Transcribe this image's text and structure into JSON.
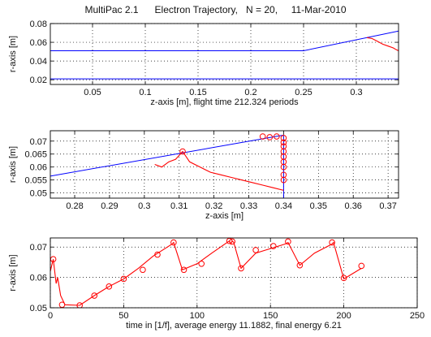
{
  "figure_title": "MultiPac 2.1      Electron Trajectory,   N = 20,     11-Mar-2010",
  "chart_data": [
    {
      "type": "line",
      "xlabel": "z-axis [m],  flight time 212.324 periods",
      "ylabel": "r-axis [m]",
      "xlim": [
        0.01,
        0.34
      ],
      "ylim": [
        0.015,
        0.08
      ],
      "xticks": [
        0.05,
        0.1,
        0.15,
        0.2,
        0.25,
        0.3
      ],
      "xtick_labels": [
        "0.05",
        "0.1",
        "0.15",
        "0.2",
        "0.25",
        "0.3"
      ],
      "yticks": [
        0.02,
        0.04,
        0.06,
        0.08
      ],
      "ytick_labels": [
        "0.02",
        "0.04",
        "0.06",
        "0.08"
      ],
      "grid": true,
      "series": [
        {
          "role": "geometry",
          "color": "#0000ff",
          "x": [
            0.01,
            0.25,
            0.34
          ],
          "y": [
            0.051,
            0.051,
            0.072
          ]
        },
        {
          "role": "geometry",
          "color": "#0000ff",
          "x": [
            0.01,
            0.34
          ],
          "y": [
            0.021,
            0.021
          ]
        },
        {
          "role": "trajectory",
          "color": "#ff0000",
          "x": [
            0.31,
            0.315,
            0.32,
            0.325,
            0.33,
            0.335,
            0.338,
            0.34
          ],
          "y": [
            0.065,
            0.064,
            0.061,
            0.058,
            0.056,
            0.054,
            0.052,
            0.051
          ]
        }
      ]
    },
    {
      "type": "line",
      "xlabel": "z-axis [m]",
      "ylabel": "r-axis [m]",
      "xlim": [
        0.273,
        0.373
      ],
      "ylim": [
        0.048,
        0.074
      ],
      "xticks": [
        0.28,
        0.29,
        0.3,
        0.31,
        0.32,
        0.33,
        0.34,
        0.35,
        0.36,
        0.37
      ],
      "xtick_labels": [
        "0.28",
        "0.29",
        "0.3",
        "0.31",
        "0.32",
        "0.33",
        "0.34",
        "0.35",
        "0.36",
        "0.37"
      ],
      "yticks": [
        0.05,
        0.055,
        0.06,
        0.065,
        0.07
      ],
      "ytick_labels": [
        "0.05",
        "0.055",
        "0.06",
        "0.065",
        "0.07"
      ],
      "grid": true,
      "series": [
        {
          "role": "geometry",
          "color": "#0000ff",
          "x": [
            0.273,
            0.34
          ],
          "y": [
            0.0565,
            0.0723
          ]
        },
        {
          "role": "geometry",
          "color": "#0000ff",
          "x": [
            0.34,
            0.34
          ],
          "y": [
            0.048,
            0.0723
          ]
        },
        {
          "role": "trajectory",
          "color": "#ff0000",
          "x": [
            0.303,
            0.305,
            0.307,
            0.309,
            0.311,
            0.313,
            0.316,
            0.319,
            0.322,
            0.325,
            0.328,
            0.331,
            0.334,
            0.337,
            0.34
          ],
          "y": [
            0.061,
            0.06,
            0.062,
            0.063,
            0.066,
            0.062,
            0.06,
            0.058,
            0.057,
            0.056,
            0.055,
            0.054,
            0.053,
            0.052,
            0.051
          ]
        },
        {
          "role": "impacts",
          "color": "#ff0000",
          "x": [
            0.311,
            0.334,
            0.336,
            0.338,
            0.34,
            0.34,
            0.34,
            0.34,
            0.34,
            0.34,
            0.34,
            0.34,
            0.34
          ],
          "y": [
            0.066,
            0.0718,
            0.0715,
            0.0718,
            0.0712,
            0.0695,
            0.068,
            0.066,
            0.064,
            0.062,
            0.06,
            0.057,
            0.055
          ]
        }
      ]
    },
    {
      "type": "line",
      "xlabel": "time in [1/f], average energy 11.1882, final energy 6.21",
      "ylabel": "r-axis [m]",
      "xlim": [
        0,
        250
      ],
      "ylim": [
        0.05,
        0.073
      ],
      "xticks": [
        0,
        50,
        100,
        150,
        200,
        250
      ],
      "xtick_labels": [
        "0",
        "50",
        "100",
        "150",
        "200",
        "250"
      ],
      "yticks": [
        0.05,
        0.06,
        0.07
      ],
      "ytick_labels": [
        "0.05",
        "0.06",
        "0.07"
      ],
      "grid": true,
      "series": [
        {
          "role": "trajectory",
          "color": "#ff0000",
          "x": [
            0,
            2,
            4,
            5,
            7,
            10,
            20,
            30,
            40,
            50,
            60,
            70,
            83,
            84,
            90,
            100,
            110,
            122,
            123,
            124,
            125,
            130,
            140,
            150,
            160,
            162,
            170,
            180,
            192,
            193,
            200,
            212
          ],
          "y": [
            0.062,
            0.066,
            0.058,
            0.06,
            0.054,
            0.051,
            0.0508,
            0.054,
            0.057,
            0.0595,
            0.063,
            0.067,
            0.071,
            0.0715,
            0.0625,
            0.0645,
            0.068,
            0.072,
            0.071,
            0.072,
            0.0715,
            0.063,
            0.068,
            0.0695,
            0.071,
            0.0715,
            0.064,
            0.068,
            0.071,
            0.0715,
            0.0595,
            0.063
          ]
        },
        {
          "role": "impacts",
          "color": "#ff0000",
          "x": [
            2,
            8,
            20,
            30,
            40,
            50,
            63,
            73,
            84,
            91,
            103,
            122,
            124,
            130,
            140,
            152,
            162,
            170,
            192,
            200,
            212
          ],
          "y": [
            0.066,
            0.051,
            0.0508,
            0.054,
            0.057,
            0.0595,
            0.0625,
            0.0675,
            0.0715,
            0.0625,
            0.0645,
            0.072,
            0.0718,
            0.063,
            0.069,
            0.0703,
            0.0718,
            0.064,
            0.0715,
            0.0598,
            0.0638
          ]
        }
      ]
    }
  ]
}
